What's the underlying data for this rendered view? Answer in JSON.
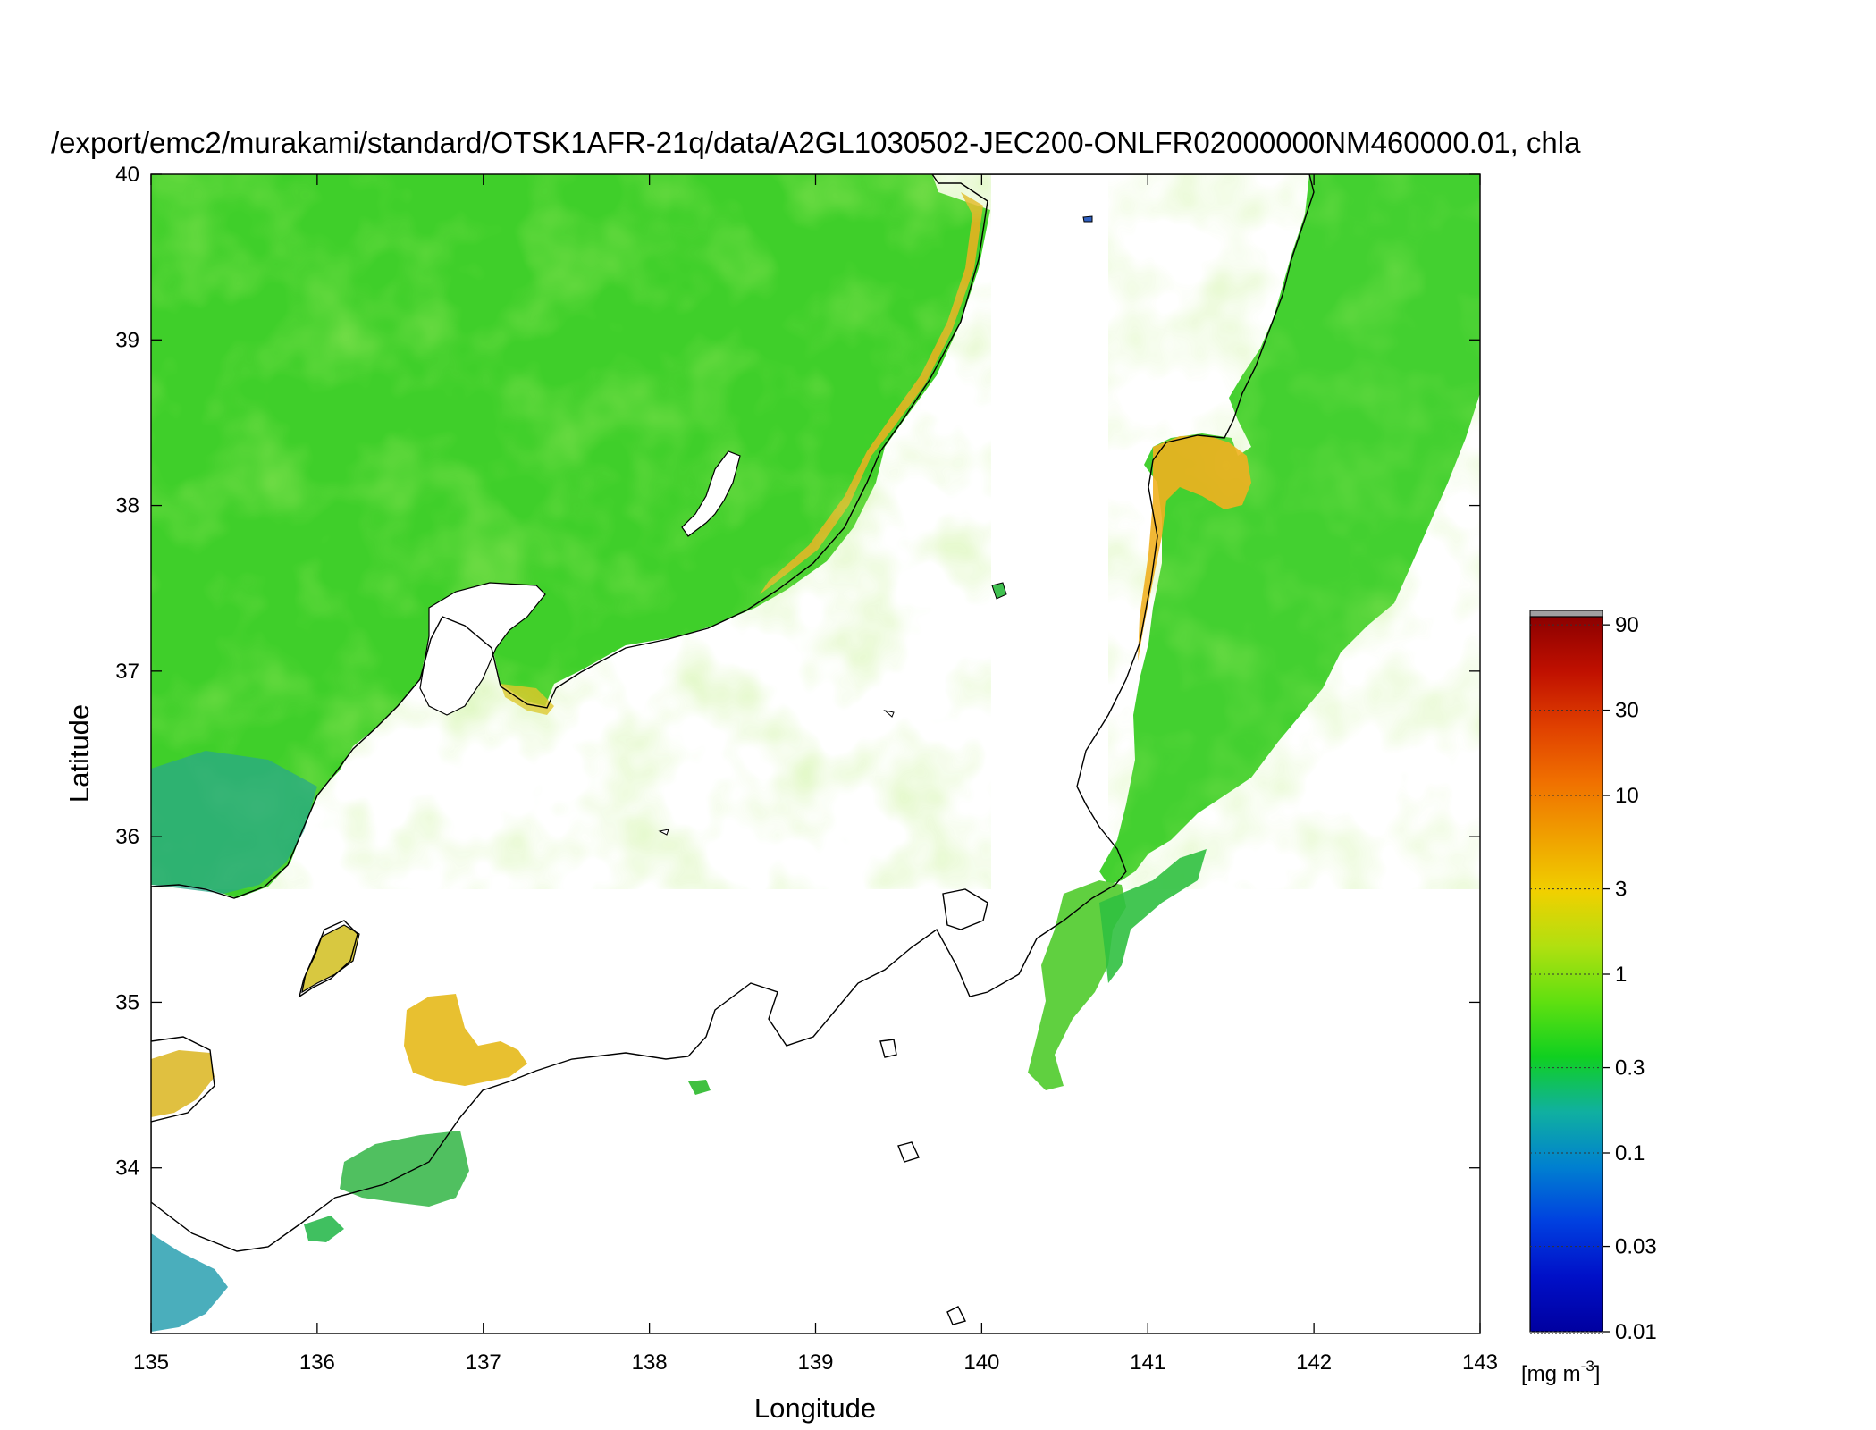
{
  "title": "/export/emc2/murakami/standard/OTSK1AFR-21q/data/A2GL1030502-JEC200-ONLFR02000000NM460000.01, chla",
  "map": {
    "xlabel": "Longitude",
    "ylabel": "Latitude",
    "lon_range": [
      135,
      143
    ],
    "lat_range": [
      33,
      40
    ],
    "lon_ticks": [
      "135",
      "136",
      "137",
      "138",
      "139",
      "140",
      "141",
      "142",
      "143"
    ],
    "lat_ticks": [
      "34",
      "35",
      "36",
      "37",
      "38",
      "39",
      "40"
    ],
    "land_color": "#ffffff",
    "missing_color": "#ffffff"
  },
  "colorbar": {
    "scale": "log",
    "range": [
      0.01,
      100
    ],
    "tick_values": [
      90,
      30,
      10,
      3,
      1,
      0.3,
      0.1,
      0.03,
      0.01
    ],
    "tick_labels": [
      "90",
      "30",
      "10",
      "3",
      "1",
      "0.3",
      "0.1",
      "0.03",
      "0.01"
    ],
    "unit_main": "[mg m",
    "unit_sup": "-3",
    "unit_close": "]",
    "colors": [
      "#0000a0",
      "#0010c8",
      "#0040e0",
      "#0080d0",
      "#10b0a0",
      "#10d020",
      "#60e010",
      "#b0e010",
      "#f0d000",
      "#f0a000",
      "#f07000",
      "#e04000",
      "#c01000",
      "#8c0000"
    ],
    "over_color": "#a0a0a0"
  }
}
